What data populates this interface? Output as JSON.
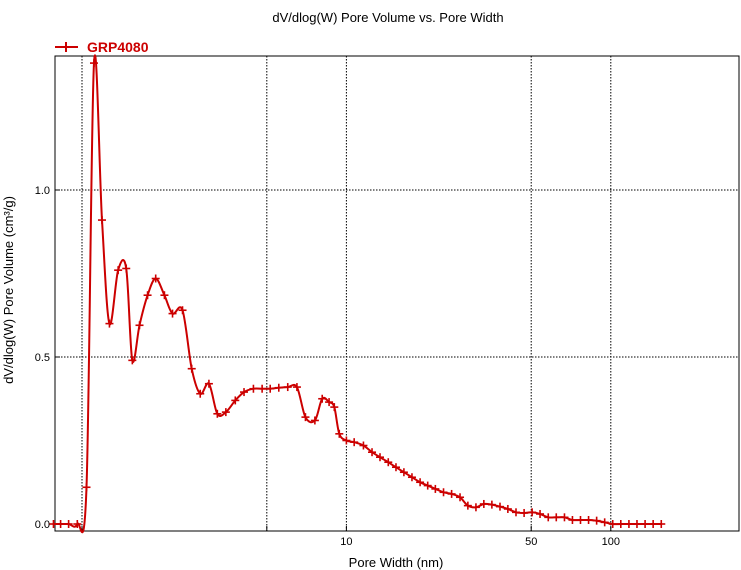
{
  "chart_data": {
    "type": "line",
    "title": "dV/dlog(W) Pore Volume vs. Pore Width",
    "xlabel": "Pore Width (nm)",
    "ylabel": "dV/dlog(W) Pore Volume (cm³/g)",
    "x_scale": "log",
    "xlim": [
      0.65,
      180
    ],
    "ylim": [
      0,
      1.4
    ],
    "x_ticks": [
      {
        "value": 1,
        "label": ""
      },
      {
        "value": 5,
        "label": ""
      },
      {
        "value": 10,
        "label": "10"
      },
      {
        "value": 50,
        "label": "50"
      },
      {
        "value": 100,
        "label": "100"
      }
    ],
    "y_ticks": [
      {
        "value": 0,
        "label": "0.0"
      },
      {
        "value": 0.5,
        "label": "0.5"
      },
      {
        "value": 1,
        "label": "1.0"
      }
    ],
    "grid": true,
    "legend_position": "top-left",
    "series": [
      {
        "name": "GRP4080",
        "color": "#cc0000",
        "marker": "plus",
        "x": [
          0.78,
          0.83,
          0.89,
          0.96,
          1.04,
          1.11,
          1.19,
          1.27,
          1.37,
          1.47,
          1.55,
          1.65,
          1.77,
          1.9,
          2.05,
          2.2,
          2.4,
          2.6,
          2.8,
          3.02,
          3.25,
          3.5,
          3.8,
          4.1,
          4.45,
          4.8,
          5.15,
          5.55,
          6.0,
          6.5,
          7.0,
          7.6,
          8.1,
          8.6,
          9.0,
          9.4,
          10.0,
          10.7,
          11.6,
          12.5,
          13.4,
          14.4,
          15.4,
          16.5,
          17.7,
          19.0,
          20.3,
          21.7,
          23.3,
          25.0,
          26.9,
          28.8,
          30.9,
          33.1,
          35.5,
          38.1,
          40.8,
          43.8,
          47.0,
          50.4,
          54.0,
          58.0,
          62.2,
          66.8,
          71.6,
          76.8,
          82.4,
          88.4,
          94.8,
          101.7,
          109.1,
          117.1,
          125.6,
          134.8,
          144.6,
          155.2
        ],
        "y": [
          0.0,
          0.0,
          0.0,
          0.0,
          0.11,
          1.38,
          0.91,
          0.6,
          0.76,
          0.765,
          0.49,
          0.595,
          0.685,
          0.735,
          0.685,
          0.63,
          0.64,
          0.465,
          0.39,
          0.42,
          0.33,
          0.335,
          0.37,
          0.395,
          0.405,
          0.405,
          0.405,
          0.408,
          0.41,
          0.41,
          0.32,
          0.31,
          0.375,
          0.365,
          0.35,
          0.27,
          0.25,
          0.245,
          0.235,
          0.215,
          0.2,
          0.185,
          0.17,
          0.155,
          0.14,
          0.125,
          0.115,
          0.105,
          0.095,
          0.09,
          0.08,
          0.055,
          0.05,
          0.06,
          0.058,
          0.052,
          0.045,
          0.035,
          0.033,
          0.035,
          0.03,
          0.02,
          0.02,
          0.02,
          0.012,
          0.012,
          0.012,
          0.01,
          0.005,
          0.0,
          0.0,
          0.0,
          0.0,
          0.0,
          0.0,
          0.0
        ]
      }
    ]
  }
}
